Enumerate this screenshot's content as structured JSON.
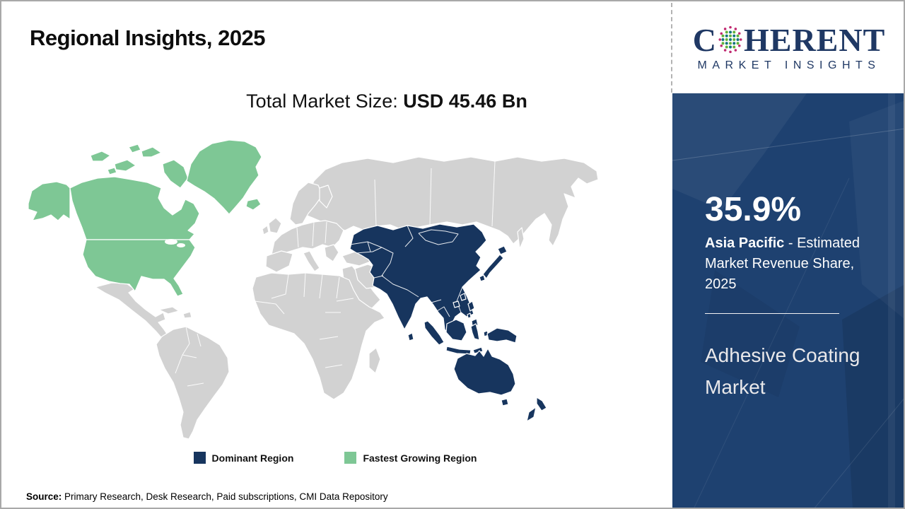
{
  "title": "Regional Insights, 2025",
  "market_size": {
    "label": "Total Market Size: ",
    "value": "USD 45.46 Bn"
  },
  "logo": {
    "word_start": "C",
    "word_end": "HERENT",
    "subtitle": "MARKET INSIGHTS",
    "globe_icon": "dotted-globe-icon"
  },
  "sidebar": {
    "share_value": "35.9%",
    "share_region": "Asia Pacific",
    "share_rest": " - Estimated Market Revenue Share, 2025",
    "market_name": "Adhesive Coating Market"
  },
  "map": {
    "regions": [
      {
        "name": "Asia Pacific",
        "role": "Dominant Region",
        "color": "#17355E"
      },
      {
        "name": "North America",
        "role": "Fastest Growing Region",
        "color": "#7EC795"
      },
      {
        "name": "Rest of World",
        "role": "Other",
        "color": "#D2D2D2"
      }
    ]
  },
  "legend": {
    "items": [
      {
        "label": "Dominant Region",
        "color": "#17355E"
      },
      {
        "label": "Fastest Growing Region",
        "color": "#7EC795"
      }
    ]
  },
  "source": {
    "label": "Source:",
    "text": " Primary Research, Desk Research, Paid subscriptions, CMI Data Repository"
  },
  "colors": {
    "dominant": "#17355E",
    "growing": "#7EC795",
    "other-land": "#D2D2D2",
    "sidebar-bg": "#1E4170",
    "logo-navy": "#1F3864"
  }
}
